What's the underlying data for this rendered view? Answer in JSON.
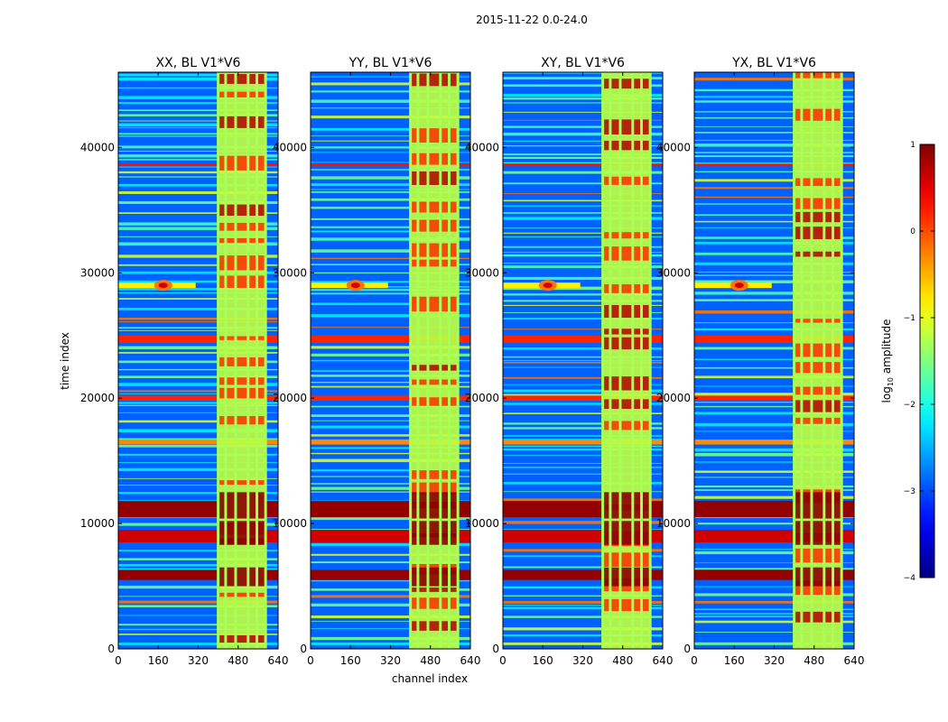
{
  "chart_data": {
    "type": "heatmap",
    "suptitle": "2015-11-22 0.0-24.0",
    "xlabel": "channel index",
    "ylabel": "time index",
    "xlim": [
      0,
      640
    ],
    "ylim": [
      0,
      46000
    ],
    "xticks": [
      0,
      160,
      320,
      480,
      640
    ],
    "yticks": [
      0,
      10000,
      20000,
      30000,
      40000
    ],
    "panels": [
      {
        "title": "XX, BL V1*V6",
        "pol": "XX"
      },
      {
        "title": "YY, BL V1*V6",
        "pol": "YY"
      },
      {
        "title": "XY, BL V1*V6",
        "pol": "XY"
      },
      {
        "title": "YX, BL V1*V6",
        "pol": "YX"
      }
    ],
    "rfi_channel_band": [
      400,
      590
    ],
    "rfi_channel_stripes": [
      400,
      430,
      470,
      520,
      555,
      590
    ],
    "rfi_hotspot": {
      "channel": 180,
      "time": 29000
    },
    "strong_time_bands": [
      {
        "start": 5500,
        "end": 6300,
        "value": 0.9
      },
      {
        "start": 8500,
        "end": 9500,
        "value": 0.6
      },
      {
        "start": 10500,
        "end": 11800,
        "value": 0.9
      },
      {
        "start": 16300,
        "end": 16700,
        "value": -0.3
      },
      {
        "start": 19800,
        "end": 20200,
        "value": 0.2
      },
      {
        "start": 24400,
        "end": 25000,
        "value": 0.2
      },
      {
        "start": 38500,
        "end": 38700,
        "value": 0.3
      }
    ],
    "colorbar": {
      "label": "log",
      "label_sub": "10",
      "label_suffix": " amplitude",
      "vmin": -4,
      "vmax": 1,
      "ticks": [
        -4,
        -3,
        -2,
        -1,
        0,
        1
      ],
      "colormap": "jet"
    }
  }
}
